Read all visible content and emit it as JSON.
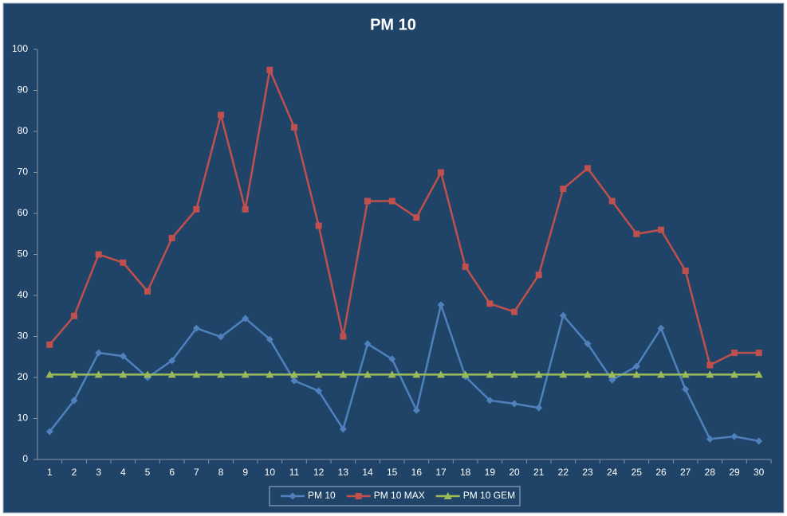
{
  "chart_data": {
    "type": "line",
    "title": "PM 10",
    "categories": [
      1,
      2,
      3,
      4,
      5,
      6,
      7,
      8,
      9,
      10,
      11,
      12,
      13,
      14,
      15,
      16,
      17,
      18,
      19,
      20,
      21,
      22,
      23,
      24,
      25,
      26,
      27,
      28,
      29,
      30
    ],
    "series": [
      {
        "name": "PM 10",
        "color": "#4f81bd",
        "marker": "diamond",
        "values": [
          6.8,
          14.4,
          26.0,
          25.2,
          20.0,
          24.1,
          32.0,
          29.9,
          34.4,
          29.3,
          19.2,
          16.7,
          7.4,
          28.2,
          24.5,
          12.0,
          37.7,
          20.2,
          14.4,
          13.6,
          12.6,
          35.1,
          28.2,
          19.4,
          22.7,
          32.0,
          17.1,
          5.0,
          5.6,
          4.5
        ]
      },
      {
        "name": "PM 10 MAX",
        "color": "#c0504d",
        "marker": "square",
        "values": [
          28,
          35,
          50,
          48,
          41,
          54,
          61,
          84,
          61,
          95,
          81,
          57,
          30,
          63,
          63,
          59,
          70,
          47,
          38,
          36,
          45,
          66,
          71,
          63,
          55,
          56,
          46,
          23,
          26,
          26
        ]
      },
      {
        "name": "PM 10 GEM",
        "color": "#9bbb59",
        "marker": "triangle",
        "values": [
          20.7,
          20.7,
          20.7,
          20.7,
          20.7,
          20.7,
          20.7,
          20.7,
          20.7,
          20.7,
          20.7,
          20.7,
          20.7,
          20.7,
          20.7,
          20.7,
          20.7,
          20.7,
          20.7,
          20.7,
          20.7,
          20.7,
          20.7,
          20.7,
          20.7,
          20.7,
          20.7,
          20.7,
          20.7,
          20.7
        ]
      }
    ],
    "ylim": [
      0,
      100
    ],
    "yticks": [
      0,
      10,
      20,
      30,
      40,
      50,
      60,
      70,
      80,
      90,
      100
    ],
    "grid": false,
    "legend": "bottom"
  }
}
